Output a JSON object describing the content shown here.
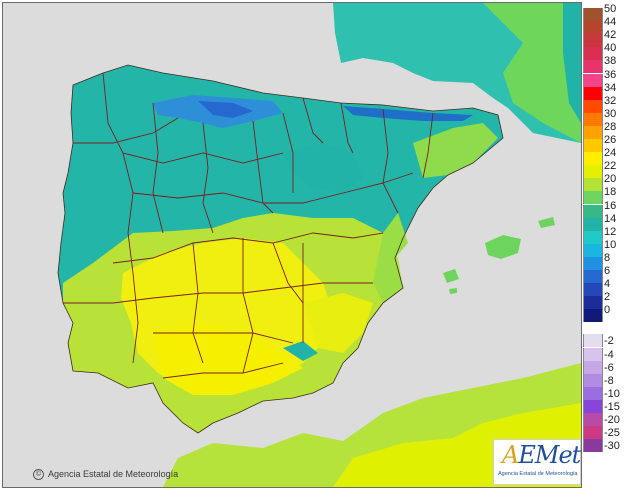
{
  "map": {
    "title": "",
    "copyright": "Agencia Estatal de Meteorología",
    "logo": {
      "wordmark_a": "A",
      "wordmark_rest": "EMet",
      "subtitle": "Agencia Estatal de Meteorología"
    },
    "colors": {
      "sea": "#dcdcdc",
      "land_outside": "#e8e8e8",
      "province_border": "#7a1e1e",
      "coast": "#3d2a1a"
    }
  },
  "legend": {
    "positive": [
      {
        "label": "50",
        "color": "#a0522d"
      },
      {
        "label": "44",
        "color": "#b5452d"
      },
      {
        "label": "42",
        "color": "#c9363d"
      },
      {
        "label": "40",
        "color": "#d9304f"
      },
      {
        "label": "38",
        "color": "#e8336b"
      },
      {
        "label": "36",
        "color": "#f2458a"
      },
      {
        "label": "34",
        "color": "#ff0000"
      },
      {
        "label": "32",
        "color": "#ff4a00"
      },
      {
        "label": "30",
        "color": "#ff7800"
      },
      {
        "label": "28",
        "color": "#ffa200"
      },
      {
        "label": "26",
        "color": "#ffc800"
      },
      {
        "label": "24",
        "color": "#ffee00"
      },
      {
        "label": "22",
        "color": "#e4f000"
      },
      {
        "label": "20",
        "color": "#b2e233"
      },
      {
        "label": "18",
        "color": "#6dd45e"
      },
      {
        "label": "16",
        "color": "#38b888"
      },
      {
        "label": "14",
        "color": "#22b3a8"
      },
      {
        "label": "12",
        "color": "#20c8c8"
      },
      {
        "label": "10",
        "color": "#1ab6e0"
      },
      {
        "label": "8",
        "color": "#2090e0"
      },
      {
        "label": "6",
        "color": "#2468d0"
      },
      {
        "label": "4",
        "color": "#2448b8"
      },
      {
        "label": "2",
        "color": "#1c2c98"
      },
      {
        "label": "0",
        "color": "#101878"
      }
    ],
    "negative": [
      {
        "label": "-2",
        "color": "#e6dcf2"
      },
      {
        "label": "-4",
        "color": "#d6c4ec"
      },
      {
        "label": "-6",
        "color": "#c6a8e6"
      },
      {
        "label": "-8",
        "color": "#b08ce2"
      },
      {
        "label": "-10",
        "color": "#9a6ee0"
      },
      {
        "label": "-15",
        "color": "#8844d6"
      },
      {
        "label": "-20",
        "color": "#b84aa8"
      },
      {
        "label": "-25",
        "color": "#cc3a86"
      },
      {
        "label": "-30",
        "color": "#8a3a9a"
      }
    ]
  },
  "regions": [
    {
      "name": "north-coast-cool",
      "color": "#21b8ad"
    },
    {
      "name": "cantabrian-mountains-cold",
      "color": "#2e8fd8"
    },
    {
      "name": "pyrenees-cold",
      "color": "#1f6fc8"
    },
    {
      "name": "meseta-north",
      "color": "#24b5a9"
    },
    {
      "name": "mediterranean-warm",
      "color": "#b4e03a"
    },
    {
      "name": "south-hot",
      "color": "#f0ef10"
    }
  ]
}
